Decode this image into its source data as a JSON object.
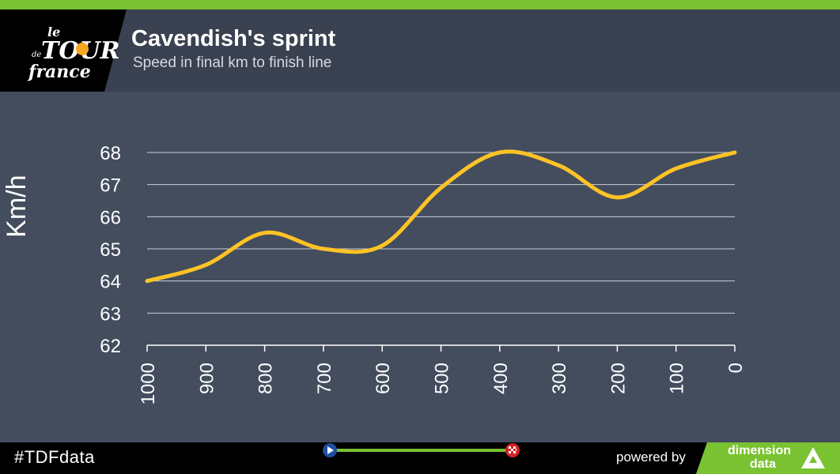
{
  "header": {
    "title": "Cavendish's sprint",
    "subtitle": "Speed in final km to finish line"
  },
  "logo": {
    "text": "le Tour de France",
    "dot_color": "#f7a823"
  },
  "footer": {
    "hashtag": "#TDFdata",
    "powered_by": "powered by",
    "sponsor_line1": "dimension",
    "sponsor_line2": "data",
    "progress_color": "#7ac231",
    "start_icon": "play-icon",
    "finish_icon": "checkered-flag-icon"
  },
  "colors": {
    "accent": "#7ac231",
    "line": "#fec325",
    "background": "#434d5e",
    "header_background": "#3a4150"
  },
  "chart_data": {
    "type": "line",
    "title": "Cavendish's sprint",
    "subtitle": "Speed in final km to finish line",
    "xlabel": "",
    "ylabel": "Km/h",
    "x": [
      1000,
      900,
      800,
      700,
      600,
      500,
      400,
      300,
      200,
      100,
      0
    ],
    "series": [
      {
        "values": [
          64,
          64.5,
          65.5,
          65,
          65.1,
          66.9,
          68,
          67.6,
          66.6,
          67.5,
          68
        ]
      }
    ],
    "x_tick_labels": [
      "1000",
      "900",
      "800",
      "700",
      "600",
      "500",
      "400",
      "300",
      "200",
      "100",
      "0"
    ],
    "y_ticks": [
      62,
      63,
      64,
      65,
      66,
      67,
      68
    ],
    "xlim": [
      1000,
      0
    ],
    "ylim": [
      62,
      68
    ],
    "grid": true,
    "legend": "none"
  }
}
